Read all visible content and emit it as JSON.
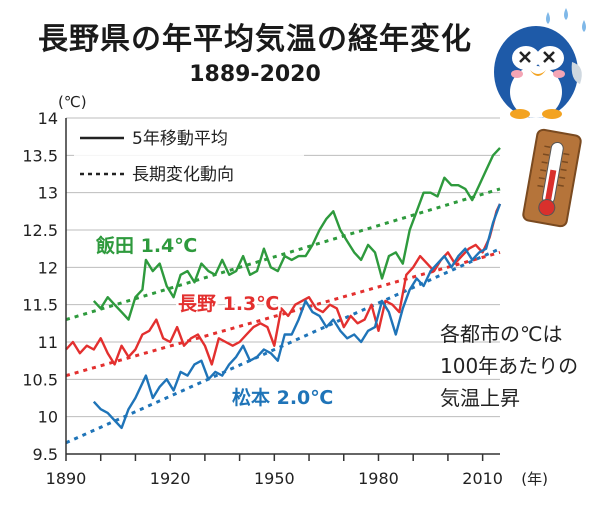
{
  "title": "長野県の年平均気温の経年変化",
  "subtitle": "1889-2020",
  "unit_label": "(℃)",
  "x_suffix": "(年)",
  "note_lines": [
    "各都市の℃は",
    "100年あたりの",
    "気温上昇"
  ],
  "chart_data": {
    "type": "line",
    "xlim": [
      1890,
      2015
    ],
    "ylim": [
      9.5,
      14
    ],
    "yticks": [
      9.5,
      10,
      10.5,
      11,
      11.5,
      12,
      12.5,
      13,
      13.5,
      14
    ],
    "xticks": [
      1890,
      1920,
      1950,
      1980,
      2010
    ],
    "grid": true,
    "legend_position": "top-left",
    "legend": [
      {
        "label": "5年移動平均",
        "style": "solid"
      },
      {
        "label": "長期変化動向",
        "style": "dotted"
      }
    ],
    "series": [
      {
        "name": "飯田",
        "label": "飯田 1.4℃",
        "color": "#2e9a3d",
        "x": [
          1898,
          1900,
          1902,
          1904,
          1906,
          1908,
          1910,
          1912,
          1913,
          1915,
          1917,
          1919,
          1921,
          1923,
          1925,
          1927,
          1929,
          1931,
          1933,
          1935,
          1937,
          1939,
          1941,
          1943,
          1945,
          1947,
          1949,
          1951,
          1953,
          1955,
          1957,
          1959,
          1961,
          1963,
          1965,
          1967,
          1969,
          1971,
          1973,
          1975,
          1977,
          1979,
          1981,
          1983,
          1985,
          1987,
          1989,
          1991,
          1993,
          1995,
          1997,
          1999,
          2001,
          2003,
          2005,
          2007,
          2009,
          2011,
          2013,
          2015
        ],
        "y": [
          11.55,
          11.45,
          11.6,
          11.5,
          11.4,
          11.3,
          11.6,
          11.7,
          12.1,
          11.95,
          12.05,
          11.75,
          11.6,
          11.9,
          11.95,
          11.8,
          12.05,
          11.95,
          11.9,
          12.1,
          11.9,
          11.95,
          12.15,
          11.9,
          11.95,
          12.25,
          12.0,
          11.95,
          12.15,
          12.1,
          12.15,
          12.15,
          12.3,
          12.5,
          12.65,
          12.75,
          12.5,
          12.35,
          12.2,
          12.1,
          12.3,
          12.2,
          11.85,
          12.15,
          12.2,
          12.05,
          12.5,
          12.75,
          13.0,
          13.0,
          12.95,
          13.2,
          13.1,
          13.1,
          13.05,
          12.9,
          13.1,
          13.3,
          13.5,
          13.6
        ]
      },
      {
        "name": "長野",
        "label": "長野 1.3℃",
        "color": "#e3302f",
        "x": [
          1890,
          1892,
          1894,
          1896,
          1898,
          1900,
          1902,
          1904,
          1906,
          1908,
          1910,
          1912,
          1914,
          1916,
          1918,
          1920,
          1922,
          1924,
          1926,
          1928,
          1930,
          1932,
          1934,
          1936,
          1938,
          1940,
          1942,
          1944,
          1946,
          1948,
          1950,
          1952,
          1954,
          1956,
          1958,
          1960,
          1962,
          1964,
          1966,
          1968,
          1970,
          1972,
          1974,
          1976,
          1978,
          1980,
          1982,
          1984,
          1986,
          1988,
          1990,
          1992,
          1994,
          1996,
          1998,
          2000,
          2002,
          2004,
          2006,
          2008,
          2010,
          2012,
          2014,
          2015
        ],
        "y": [
          10.9,
          11.0,
          10.85,
          10.95,
          10.9,
          11.05,
          10.85,
          10.7,
          10.95,
          10.8,
          10.9,
          11.1,
          11.15,
          11.3,
          11.05,
          11.0,
          11.2,
          10.95,
          11.05,
          11.1,
          10.95,
          10.7,
          11.05,
          11.0,
          10.95,
          11.0,
          11.1,
          11.2,
          11.25,
          11.2,
          10.95,
          11.45,
          11.35,
          11.5,
          11.55,
          11.6,
          11.45,
          11.4,
          11.5,
          11.45,
          11.2,
          11.35,
          11.25,
          11.3,
          11.5,
          11.15,
          11.55,
          11.5,
          11.4,
          11.9,
          12.0,
          12.15,
          12.05,
          11.95,
          12.1,
          12.2,
          12.05,
          12.15,
          12.25,
          12.3,
          12.2,
          12.4,
          12.75,
          12.85
        ]
      },
      {
        "name": "松本",
        "label": "松本 2.0℃",
        "color": "#1f74b8",
        "x": [
          1898,
          1900,
          1902,
          1904,
          1906,
          1908,
          1910,
          1912,
          1913,
          1915,
          1917,
          1919,
          1921,
          1923,
          1925,
          1927,
          1929,
          1931,
          1933,
          1935,
          1937,
          1939,
          1941,
          1943,
          1945,
          1947,
          1949,
          1951,
          1953,
          1955,
          1957,
          1959,
          1961,
          1963,
          1965,
          1967,
          1969,
          1971,
          1973,
          1975,
          1977,
          1979,
          1981,
          1983,
          1985,
          1987,
          1989,
          1991,
          1993,
          1995,
          1997,
          1999,
          2001,
          2003,
          2005,
          2007,
          2009,
          2011,
          2013,
          2015
        ],
        "y": [
          10.2,
          10.1,
          10.05,
          9.95,
          9.85,
          10.1,
          10.25,
          10.45,
          10.55,
          10.25,
          10.4,
          10.5,
          10.35,
          10.6,
          10.55,
          10.7,
          10.75,
          10.5,
          10.6,
          10.55,
          10.7,
          10.8,
          10.95,
          10.75,
          10.8,
          10.9,
          10.85,
          10.75,
          11.1,
          11.1,
          11.3,
          11.55,
          11.4,
          11.35,
          11.2,
          11.3,
          11.15,
          11.05,
          11.1,
          11.0,
          11.15,
          11.2,
          11.55,
          11.4,
          11.1,
          11.45,
          11.7,
          11.85,
          11.75,
          11.95,
          12.05,
          12.15,
          12.0,
          12.15,
          12.25,
          12.1,
          12.2,
          12.25,
          12.6,
          12.85
        ]
      }
    ],
    "trends": [
      {
        "name": "飯田",
        "color": "#2e9a3d",
        "x": [
          1890,
          2015
        ],
        "y": [
          11.3,
          13.05
        ]
      },
      {
        "name": "長野",
        "color": "#e3302f",
        "x": [
          1890,
          2015
        ],
        "y": [
          10.55,
          12.2
        ]
      },
      {
        "name": "松本",
        "color": "#1f74b8",
        "x": [
          1890,
          2015
        ],
        "y": [
          9.65,
          12.25
        ]
      }
    ]
  }
}
